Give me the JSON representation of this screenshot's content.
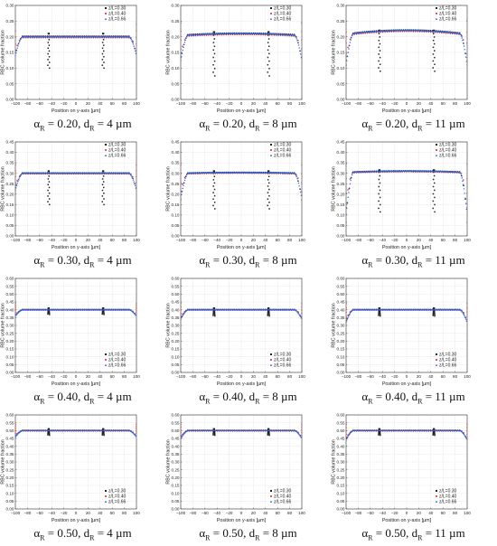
{
  "chart_data": [
    {
      "type": "scatter",
      "row": 0,
      "col": 0,
      "alpha": "0.20",
      "d": "4",
      "ylim": [
        0,
        0.3
      ],
      "yticks": [
        0,
        0.05,
        0.1,
        0.15,
        0.2,
        0.25,
        0.3
      ],
      "ytick_labels": [
        "0.00",
        "0.05",
        "0.10",
        "0.15",
        "0.20",
        "0.25",
        "0.30"
      ],
      "plateau": 0.2,
      "bulge": 0.0,
      "edge_dip": 0.06,
      "spike_depth": 0.1,
      "legend_pos": "top-right"
    },
    {
      "type": "scatter",
      "row": 0,
      "col": 1,
      "alpha": "0.20",
      "d": "8",
      "ylim": [
        0,
        0.3
      ],
      "yticks": [
        0,
        0.05,
        0.1,
        0.15,
        0.2,
        0.25,
        0.3
      ],
      "ytick_labels": [
        "0.00",
        "0.05",
        "0.10",
        "0.15",
        "0.20",
        "0.25",
        "0.30"
      ],
      "plateau": 0.205,
      "bulge": 0.005,
      "edge_dip": 0.08,
      "spike_depth": 0.13,
      "legend_pos": "top-right"
    },
    {
      "type": "scatter",
      "row": 0,
      "col": 2,
      "alpha": "0.20",
      "d": "11",
      "ylim": [
        0,
        0.3
      ],
      "yticks": [
        0,
        0.05,
        0.1,
        0.15,
        0.2,
        0.25,
        0.3
      ],
      "ytick_labels": [
        "0.00",
        "0.05",
        "0.10",
        "0.15",
        "0.20",
        "0.25",
        "0.30"
      ],
      "plateau": 0.21,
      "bulge": 0.01,
      "edge_dip": 0.1,
      "spike_depth": 0.12,
      "legend_pos": "top-right"
    },
    {
      "type": "scatter",
      "row": 1,
      "col": 0,
      "alpha": "0.30",
      "d": "4",
      "ylim": [
        0,
        0.45
      ],
      "yticks": [
        0,
        0.05,
        0.1,
        0.15,
        0.2,
        0.25,
        0.3,
        0.35,
        0.4,
        0.45
      ],
      "ytick_labels": [
        "0.00",
        "0.05",
        "0.10",
        "0.15",
        "0.20",
        "0.25",
        "0.30",
        "0.35",
        "0.40",
        "0.45"
      ],
      "plateau": 0.3,
      "bulge": 0.0,
      "edge_dip": 0.08,
      "spike_depth": 0.15,
      "legend_pos": "top-right"
    },
    {
      "type": "scatter",
      "row": 1,
      "col": 1,
      "alpha": "0.30",
      "d": "8",
      "ylim": [
        0,
        0.45
      ],
      "yticks": [
        0,
        0.05,
        0.1,
        0.15,
        0.2,
        0.25,
        0.3,
        0.35,
        0.4,
        0.45
      ],
      "ytick_labels": [
        "0.00",
        "0.05",
        "0.10",
        "0.15",
        "0.20",
        "0.25",
        "0.30",
        "0.35",
        "0.40",
        "0.45"
      ],
      "plateau": 0.3,
      "bulge": 0.003,
      "edge_dip": 0.12,
      "spike_depth": 0.17,
      "legend_pos": "top-right"
    },
    {
      "type": "scatter",
      "row": 1,
      "col": 2,
      "alpha": "0.30",
      "d": "11",
      "ylim": [
        0,
        0.45
      ],
      "yticks": [
        0,
        0.05,
        0.1,
        0.15,
        0.2,
        0.25,
        0.3,
        0.35,
        0.4,
        0.45
      ],
      "ytick_labels": [
        "0.00",
        "0.05",
        "0.10",
        "0.15",
        "0.20",
        "0.25",
        "0.30",
        "0.35",
        "0.40",
        "0.45"
      ],
      "plateau": 0.305,
      "bulge": 0.005,
      "edge_dip": 0.2,
      "spike_depth": 0.19,
      "legend_pos": "top-right"
    },
    {
      "type": "scatter",
      "row": 2,
      "col": 0,
      "alpha": "0.40",
      "d": "4",
      "ylim": [
        0,
        0.6
      ],
      "yticks": [
        0,
        0.05,
        0.1,
        0.15,
        0.2,
        0.25,
        0.3,
        0.35,
        0.4,
        0.45,
        0.5,
        0.55,
        0.6
      ],
      "ytick_labels": [
        "0.00",
        "0.05",
        "0.10",
        "0.15",
        "0.20",
        "0.25",
        "0.30",
        "0.35",
        "0.40",
        "0.45",
        "0.50",
        "0.55",
        "0.60"
      ],
      "plateau": 0.4,
      "bulge": 0.0,
      "edge_dip": 0.04,
      "spike_depth": 0.03,
      "legend_pos": "bottom-right"
    },
    {
      "type": "scatter",
      "row": 2,
      "col": 1,
      "alpha": "0.40",
      "d": "8",
      "ylim": [
        0,
        0.6
      ],
      "yticks": [
        0,
        0.05,
        0.1,
        0.15,
        0.2,
        0.25,
        0.3,
        0.35,
        0.4,
        0.45,
        0.5,
        0.55,
        0.6
      ],
      "ytick_labels": [
        "0.00",
        "0.05",
        "0.10",
        "0.15",
        "0.20",
        "0.25",
        "0.30",
        "0.35",
        "0.40",
        "0.45",
        "0.50",
        "0.55",
        "0.60"
      ],
      "plateau": 0.4,
      "bulge": 0.0,
      "edge_dip": 0.06,
      "spike_depth": 0.04,
      "legend_pos": "bottom-right"
    },
    {
      "type": "scatter",
      "row": 2,
      "col": 2,
      "alpha": "0.40",
      "d": "11",
      "ylim": [
        0,
        0.6
      ],
      "yticks": [
        0,
        0.05,
        0.1,
        0.15,
        0.2,
        0.25,
        0.3,
        0.35,
        0.4,
        0.45,
        0.5,
        0.55,
        0.6
      ],
      "ytick_labels": [
        "0.00",
        "0.05",
        "0.10",
        "0.15",
        "0.20",
        "0.25",
        "0.30",
        "0.35",
        "0.40",
        "0.45",
        "0.50",
        "0.55",
        "0.60"
      ],
      "plateau": 0.4,
      "bulge": 0.0,
      "edge_dip": 0.08,
      "spike_depth": 0.04,
      "legend_pos": "bottom-right"
    },
    {
      "type": "scatter",
      "row": 3,
      "col": 0,
      "alpha": "0.50",
      "d": "4",
      "ylim": [
        0,
        0.6
      ],
      "yticks": [
        0,
        0.05,
        0.1,
        0.15,
        0.2,
        0.25,
        0.3,
        0.35,
        0.4,
        0.45,
        0.5,
        0.55,
        0.6
      ],
      "ytick_labels": [
        "0.00",
        "0.05",
        "0.10",
        "0.15",
        "0.20",
        "0.25",
        "0.30",
        "0.35",
        "0.40",
        "0.45",
        "0.50",
        "0.55",
        "0.60"
      ],
      "plateau": 0.5,
      "bulge": 0.0,
      "edge_dip": 0.04,
      "spike_depth": 0.03,
      "legend_pos": "bottom-right"
    },
    {
      "type": "scatter",
      "row": 3,
      "col": 1,
      "alpha": "0.50",
      "d": "8",
      "ylim": [
        0,
        0.6
      ],
      "yticks": [
        0,
        0.05,
        0.1,
        0.15,
        0.2,
        0.25,
        0.3,
        0.35,
        0.4,
        0.45,
        0.5,
        0.55,
        0.6
      ],
      "ytick_labels": [
        "0.00",
        "0.05",
        "0.10",
        "0.15",
        "0.20",
        "0.25",
        "0.30",
        "0.35",
        "0.40",
        "0.45",
        "0.50",
        "0.55",
        "0.60"
      ],
      "plateau": 0.5,
      "bulge": 0.0,
      "edge_dip": 0.05,
      "spike_depth": 0.03,
      "legend_pos": "bottom-right"
    },
    {
      "type": "scatter",
      "row": 3,
      "col": 2,
      "alpha": "0.50",
      "d": "11",
      "ylim": [
        0,
        0.6
      ],
      "yticks": [
        0,
        0.05,
        0.1,
        0.15,
        0.2,
        0.25,
        0.3,
        0.35,
        0.4,
        0.45,
        0.5,
        0.55,
        0.6
      ],
      "ytick_labels": [
        "0.00",
        "0.05",
        "0.10",
        "0.15",
        "0.20",
        "0.25",
        "0.30",
        "0.35",
        "0.40",
        "0.45",
        "0.50",
        "0.55",
        "0.60"
      ],
      "plateau": 0.5,
      "bulge": 0.0,
      "edge_dip": 0.06,
      "spike_depth": 0.03,
      "legend_pos": "bottom-right"
    }
  ],
  "shared": {
    "xlabel": "Position on y-axis [µm]",
    "ylabel": "RBC volume fraction",
    "xlim": [
      -100,
      100
    ],
    "xticks": [
      -100,
      -80,
      -60,
      -40,
      -20,
      0,
      20,
      40,
      60,
      80,
      100
    ],
    "xtick_labels": [
      "−100",
      "−80",
      "−60",
      "−40",
      "−20",
      "0",
      "20",
      "40",
      "60",
      "80",
      "100"
    ],
    "series": [
      {
        "name": "z/L=0.30",
        "color": "#222222",
        "marker": "square"
      },
      {
        "name": "z/L=0.40",
        "color": "#e02020",
        "marker": "circle"
      },
      {
        "name": "z/L=0.66",
        "color": "#2f5fd6",
        "marker": "triangle"
      }
    ],
    "caption_alpha_symbol": "α",
    "caption_d_symbol": "d",
    "caption_sub": "R",
    "caption_unit": "µm"
  }
}
